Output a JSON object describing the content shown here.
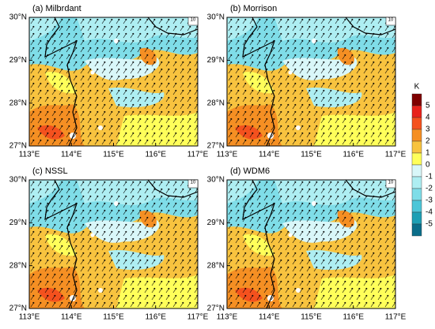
{
  "panels": [
    {
      "title": "(a) Milbrdant",
      "ref_vector": "10"
    },
    {
      "title": "(b) Morrison",
      "ref_vector": "10"
    },
    {
      "title": "(c) NSSL",
      "ref_vector": "10"
    },
    {
      "title": "(d) WDM6",
      "ref_vector": "10"
    }
  ],
  "x_ticks": [
    "113°E",
    "114°E",
    "115°E",
    "116°E",
    "117°E"
  ],
  "y_ticks": [
    "27°N",
    "28°N",
    "29°N",
    "30°N"
  ],
  "colorbar": {
    "unit": "K",
    "labels": [
      "5",
      "4",
      "3",
      "2",
      "1",
      "0",
      "-1",
      "-2",
      "-3",
      "-4",
      "-5"
    ],
    "colors": [
      "#7f0000",
      "#e8221c",
      "#f4511e",
      "#f58f23",
      "#f8c33f",
      "#ffff5a",
      "#d9f7f9",
      "#aeeef2",
      "#7fdde8",
      "#4cc6d8",
      "#1e9fb4",
      "#0b6e8a"
    ]
  }
}
